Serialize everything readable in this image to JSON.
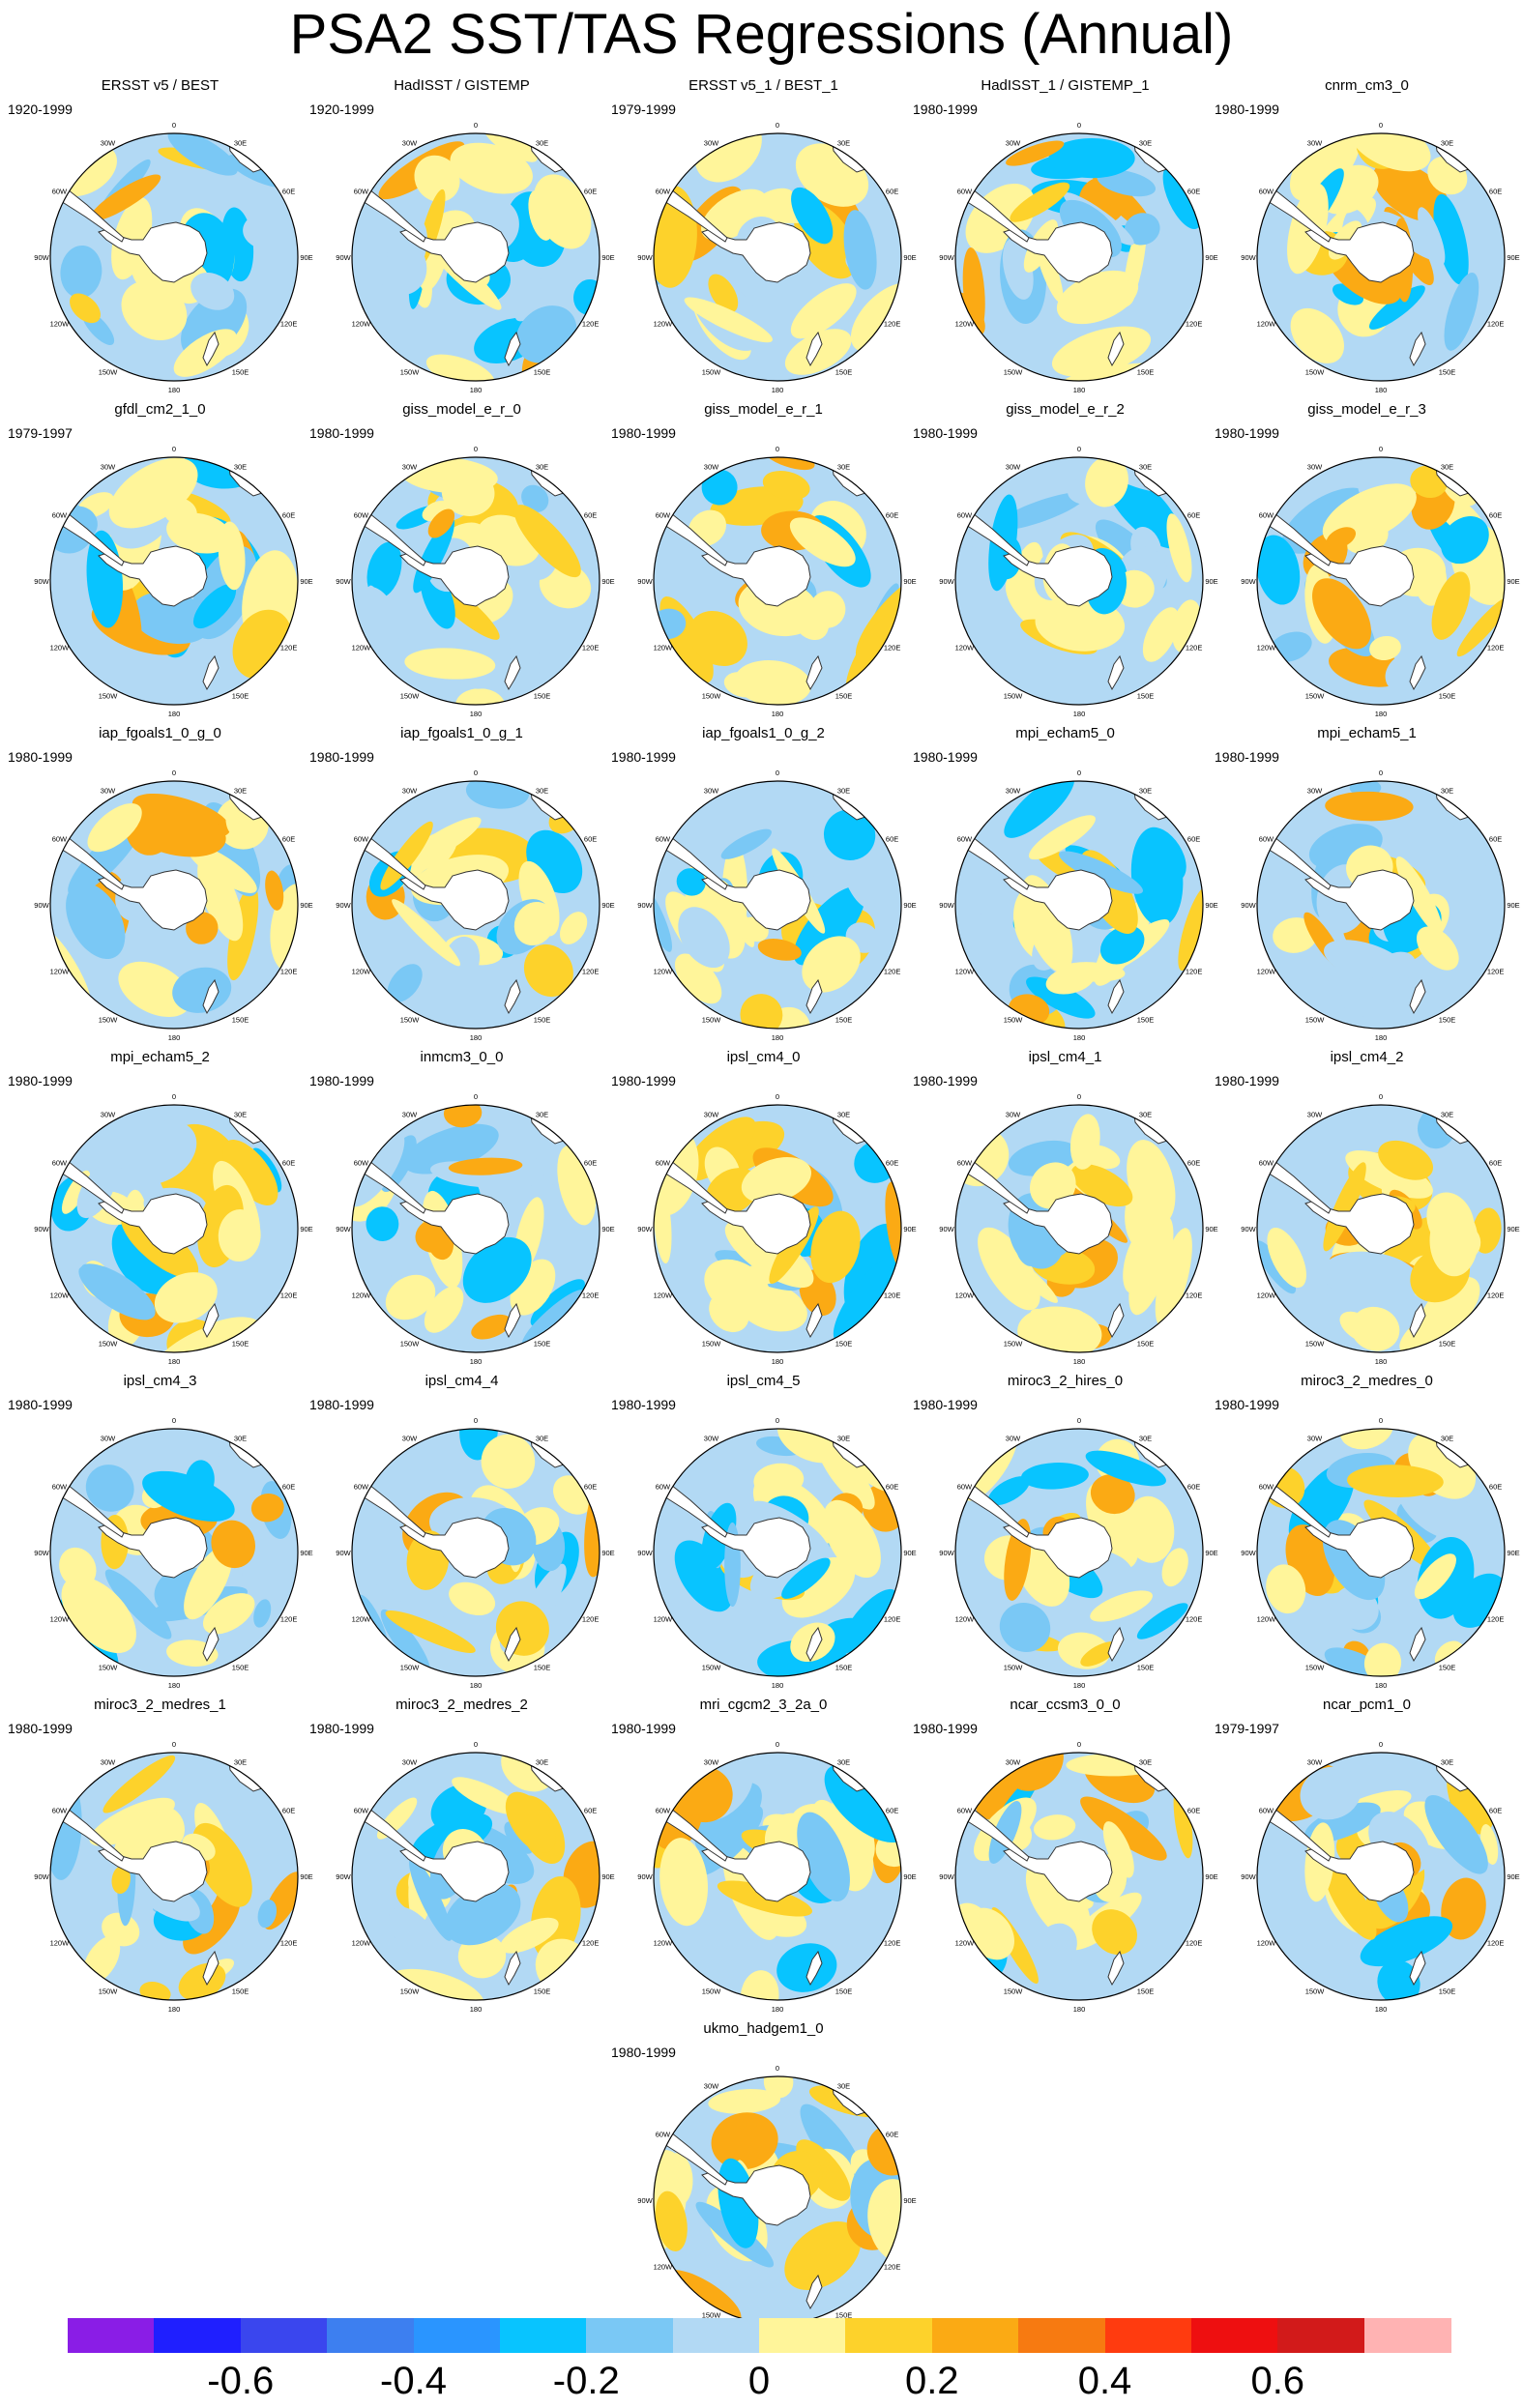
{
  "title": "PSA2 SST/TAS Regressions (Annual)",
  "longitude_labels": [
    "0",
    "30E",
    "60E",
    "90E",
    "120E",
    "150E",
    "180",
    "150W",
    "120W",
    "90W",
    "60W",
    "30W"
  ],
  "colorbar": {
    "labels": [
      "-0.6",
      "-0.4",
      "-0.2",
      "0",
      "0.2",
      "0.4",
      "0.6"
    ],
    "colors": [
      "#8a1de6",
      "#1f1fff",
      "#3a46ee",
      "#3d7ff0",
      "#2a95ff",
      "#08c4ff",
      "#7ac8f5",
      "#b2d9f4",
      "#fff59a",
      "#fdd22b",
      "#fbaa14",
      "#f77a11",
      "#ff3b0f",
      "#ee0f10",
      "#d21a1a",
      "#ffb3b3"
    ]
  },
  "panels": [
    {
      "title": "ERSST v5 / BEST",
      "period": "1920-1999"
    },
    {
      "title": "HadISST / GISTEMP",
      "period": "1920-1999"
    },
    {
      "title": "ERSST v5_1 / BEST_1",
      "period": "1979-1999"
    },
    {
      "title": "HadISST_1 / GISTEMP_1",
      "period": "1980-1999"
    },
    {
      "title": "cnrm_cm3_0",
      "period": "1980-1999"
    },
    {
      "title": "gfdl_cm2_1_0",
      "period": "1979-1997"
    },
    {
      "title": "giss_model_e_r_0",
      "period": "1980-1999"
    },
    {
      "title": "giss_model_e_r_1",
      "period": "1980-1999"
    },
    {
      "title": "giss_model_e_r_2",
      "period": "1980-1999"
    },
    {
      "title": "giss_model_e_r_3",
      "period": "1980-1999"
    },
    {
      "title": "iap_fgoals1_0_g_0",
      "period": "1980-1999"
    },
    {
      "title": "iap_fgoals1_0_g_1",
      "period": "1980-1999"
    },
    {
      "title": "iap_fgoals1_0_g_2",
      "period": "1980-1999"
    },
    {
      "title": "mpi_echam5_0",
      "period": "1980-1999"
    },
    {
      "title": "mpi_echam5_1",
      "period": "1980-1999"
    },
    {
      "title": "mpi_echam5_2",
      "period": "1980-1999"
    },
    {
      "title": "inmcm3_0_0",
      "period": "1980-1999"
    },
    {
      "title": "ipsl_cm4_0",
      "period": "1980-1999"
    },
    {
      "title": "ipsl_cm4_1",
      "period": "1980-1999"
    },
    {
      "title": "ipsl_cm4_2",
      "period": "1980-1999"
    },
    {
      "title": "ipsl_cm4_3",
      "period": "1980-1999"
    },
    {
      "title": "ipsl_cm4_4",
      "period": "1980-1999"
    },
    {
      "title": "ipsl_cm4_5",
      "period": "1980-1999"
    },
    {
      "title": "miroc3_2_hires_0",
      "period": "1980-1999"
    },
    {
      "title": "miroc3_2_medres_0",
      "period": "1980-1999"
    },
    {
      "title": "miroc3_2_medres_1",
      "period": "1980-1999"
    },
    {
      "title": "miroc3_2_medres_2",
      "period": "1980-1999"
    },
    {
      "title": "mri_cgcm2_3_2a_0",
      "period": "1980-1999"
    },
    {
      "title": "ncar_ccsm3_0_0",
      "period": "1980-1999"
    },
    {
      "title": "ncar_pcm1_0",
      "period": "1979-1997"
    },
    {
      "title": "ukmo_hadgem1_0",
      "period": "1980-1999"
    }
  ]
}
